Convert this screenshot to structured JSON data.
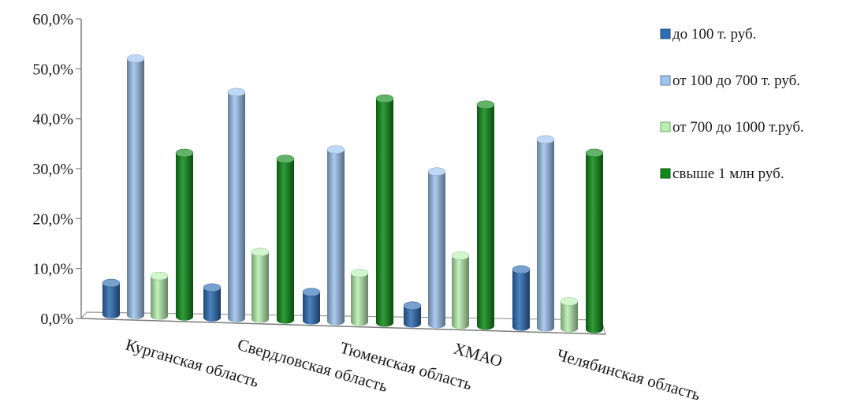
{
  "chart_data": {
    "type": "bar",
    "title": "",
    "xlabel": "",
    "ylabel": "",
    "ylim": [
      0,
      60
    ],
    "yticks": [
      "0,0%",
      "10,0%",
      "20,0%",
      "30,0%",
      "40,0%",
      "50,0%",
      "60,0%"
    ],
    "grid": false,
    "legend_position": "right",
    "categories": [
      "Курганская область",
      "Свердловская область",
      "Тюменская область",
      "ХМАО",
      "Челябинская область"
    ],
    "series": [
      {
        "name": "до 100 т. руб.",
        "color": "#2e6db4",
        "values": [
          6.3,
          6.0,
          5.7,
          3.6,
          11.5
        ]
      },
      {
        "name": "от 100 до 700 т. руб.",
        "color": "#9dc3ef",
        "values": [
          51.4,
          45.3,
          34.4,
          30.6,
          37.7
        ]
      },
      {
        "name": "от 700 до 1000 т.руб.",
        "color": "#b8f0b0",
        "values": [
          8.0,
          13.4,
          9.8,
          13.9,
          5.4
        ]
      },
      {
        "name": "свыше 1 млн руб.",
        "color": "#0e8a18",
        "values": [
          32.8,
          32.2,
          44.9,
          44.3,
          35.3
        ]
      }
    ]
  }
}
